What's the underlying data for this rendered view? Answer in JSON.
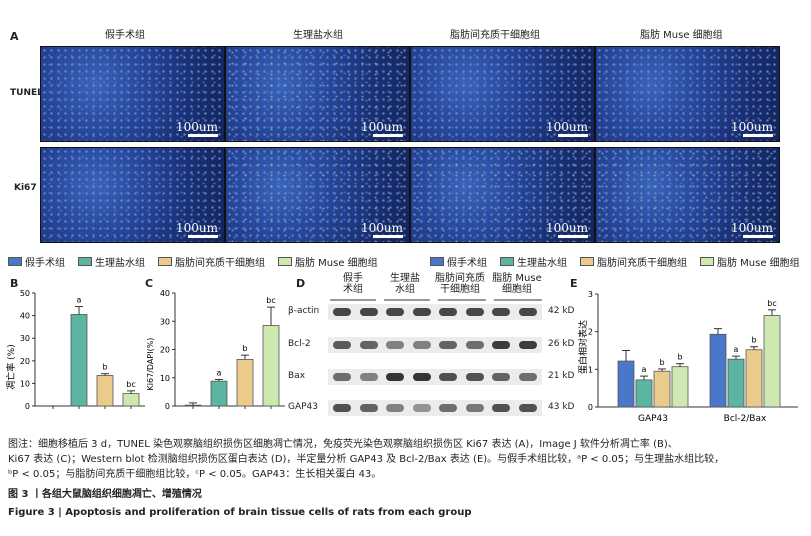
{
  "panel_a": {
    "letter": "A",
    "columns": [
      "假手术组",
      "生理盐水组",
      "脂肪间充质干细胞组",
      "脂肪 Muse 细胞组"
    ],
    "rows": [
      "TUNEL",
      "Ki67"
    ],
    "scale": "100um"
  },
  "legend": {
    "items": [
      "假手术组",
      "生理盐水组",
      "脂肪间充质干细胞组",
      "脂肪 Muse 细胞组"
    ],
    "colors": [
      "#4a78c8",
      "#5bb5a2",
      "#eacb8c",
      "#cfe8b2"
    ]
  },
  "chart_b": {
    "letter": "B",
    "chart_data": {
      "type": "bar",
      "ylabel": "凋亡率 (%)",
      "ylim": [
        0,
        50
      ],
      "yticks": [
        0,
        10,
        20,
        30,
        40,
        50
      ],
      "values": [
        0,
        40.5,
        13.5,
        5.5
      ],
      "errors": [
        0,
        3.5,
        0.8,
        1.2
      ],
      "labels": [
        "",
        "a",
        "b",
        "bc"
      ]
    }
  },
  "chart_c": {
    "letter": "C",
    "chart_data": {
      "type": "bar",
      "ylabel": "Ki67/DAPI(%)",
      "ylim": [
        0,
        40
      ],
      "yticks": [
        0,
        10,
        20,
        30,
        40
      ],
      "values": [
        0.3,
        8.8,
        16.5,
        28.5
      ],
      "errors": [
        0.8,
        0.6,
        1.5,
        6.5
      ],
      "labels": [
        "",
        "a",
        "b",
        "bc"
      ]
    }
  },
  "panel_d": {
    "letter": "D",
    "groups": [
      "假手\n术组",
      "生理盐\n水组",
      "脂肪间充质\n干细胞组",
      "脂肪 Muse\n细胞组"
    ],
    "proteins": [
      "β-actin",
      "Bcl-2",
      "Bax",
      "GAP43"
    ],
    "sizes": [
      "42 kD",
      "26 kD",
      "21 kD",
      "43 kD"
    ]
  },
  "chart_e": {
    "letter": "E",
    "chart_data": {
      "type": "bar",
      "ylabel": "蛋白相对表达",
      "ylim": [
        0,
        3
      ],
      "yticks": [
        0,
        1,
        2,
        3
      ],
      "categories": [
        "GAP43",
        "Bcl-2/Bax"
      ],
      "series": [
        {
          "name": "假手术组",
          "values": [
            1.22,
            1.93
          ],
          "errors": [
            0.28,
            0.15
          ]
        },
        {
          "name": "生理盐水组",
          "values": [
            0.72,
            1.27
          ],
          "errors": [
            0.1,
            0.08
          ]
        },
        {
          "name": "脂肪间充质干细胞组",
          "values": [
            0.95,
            1.52
          ],
          "errors": [
            0.06,
            0.08
          ]
        },
        {
          "name": "脂肪 Muse 细胞组",
          "values": [
            1.07,
            2.43
          ],
          "errors": [
            0.08,
            0.15
          ]
        }
      ],
      "labels": [
        [
          "",
          "a",
          "b",
          "b"
        ],
        [
          "",
          "a",
          "b",
          "bc"
        ]
      ]
    }
  },
  "caption": {
    "note_line1": "图注：细胞移植后 3 d，TUNEL 染色观察脑组织损伤区细胞凋亡情况，免疫荧光染色观察脑组织损伤区 Ki67 表达 (A)，Image J 软件分析凋亡率 (B)、",
    "note_line2": "Ki67 表达 (C)；Western blot 检测脑组织损伤区蛋白表达 (D)，半定量分析 GAP43 及 Bcl-2/Bax 表达 (E)。与假手术组比较，ᵃP < 0.05；与生理盐水组比较，",
    "note_line3": "ᵇP < 0.05；与脂肪间充质干细胞组比较，ᶜP < 0.05。GAP43：生长相关蛋白 43。",
    "title_cn": "图 3  丨各组大鼠脑组织细胞凋亡、增殖情况",
    "title_en": "Figure 3  |  Apoptosis and proliferation of brain tissue cells of rats from each group"
  }
}
